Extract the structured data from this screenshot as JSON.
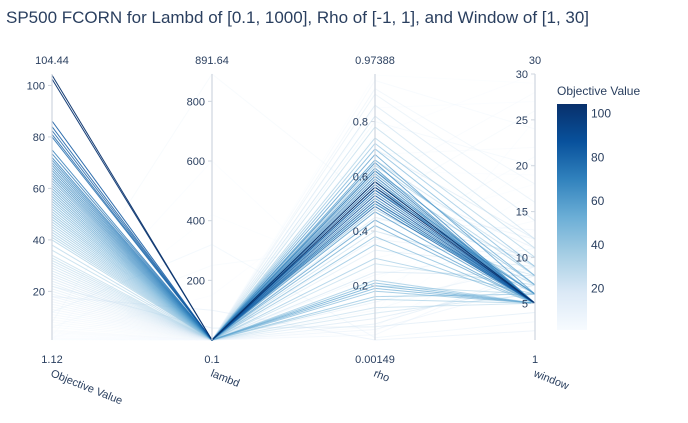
{
  "chart_data": {
    "type": "parallel_coordinates",
    "title": "SP500 FCORN for Lambd of [0.1, 1000], Rho of [-1, 1], and Window of [1, 30]",
    "colorscale": [
      "#f7fbff",
      "#dbe9f6",
      "#a6cee4",
      "#6baed6",
      "#3182bd",
      "#08519c",
      "#08306b"
    ],
    "dimensions": [
      {
        "name": "Objective Value",
        "min": 1.12,
        "max": 104.44,
        "min_label": "1.12",
        "max_label": "104.44",
        "ticks": [
          20,
          40,
          60,
          80,
          100
        ]
      },
      {
        "name": "lambd",
        "min": 0.1,
        "max": 891.64,
        "min_label": "0.1",
        "max_label": "891.64",
        "ticks": [
          200,
          400,
          600,
          800
        ]
      },
      {
        "name": "rho",
        "min": 0.00149,
        "max": 0.97388,
        "min_label": "0.00149",
        "max_label": "0.97388",
        "ticks": [
          0.2,
          0.4,
          0.6,
          0.8
        ]
      },
      {
        "name": "window",
        "min": 1,
        "max": 30,
        "min_label": "1",
        "max_label": "30",
        "ticks": [
          5,
          10,
          15,
          20,
          25,
          30
        ]
      }
    ],
    "colorbar": {
      "title": "Objective Value",
      "min": 1.12,
      "max": 104.44,
      "ticks": [
        20,
        40,
        60,
        80,
        100
      ]
    },
    "lines": [
      [
        104.0,
        0.1,
        0.58,
        5
      ],
      [
        102.5,
        0.1,
        0.56,
        5
      ],
      [
        86.2,
        0.1,
        0.53,
        5
      ],
      [
        84.0,
        0.1,
        0.55,
        5
      ],
      [
        82.5,
        0.1,
        0.51,
        5
      ],
      [
        81.0,
        0.1,
        0.49,
        5
      ],
      [
        80.0,
        0.1,
        0.57,
        5
      ],
      [
        75.0,
        0.1,
        0.62,
        5
      ],
      [
        73.5,
        0.1,
        0.58,
        5
      ],
      [
        72.0,
        0.1,
        0.6,
        5
      ],
      [
        71.0,
        0.1,
        0.54,
        5
      ],
      [
        70.0,
        0.1,
        0.65,
        5
      ],
      [
        69.0,
        0.1,
        0.52,
        5
      ],
      [
        68.0,
        0.1,
        0.59,
        5
      ],
      [
        67.0,
        0.1,
        0.5,
        5
      ],
      [
        66.0,
        0.1,
        0.63,
        5
      ],
      [
        65.0,
        0.1,
        0.55,
        6
      ],
      [
        64.0,
        0.1,
        0.47,
        5
      ],
      [
        63.0,
        0.1,
        0.61,
        5
      ],
      [
        62.0,
        0.1,
        0.68,
        6
      ],
      [
        61.0,
        0.1,
        0.44,
        5
      ],
      [
        60.0,
        0.1,
        0.56,
        6
      ],
      [
        59.0,
        0.1,
        0.5,
        5
      ],
      [
        58.0,
        0.1,
        0.66,
        7
      ],
      [
        57.0,
        0.1,
        0.42,
        5
      ],
      [
        56.0,
        0.1,
        0.2,
        5
      ],
      [
        55.0,
        0.1,
        0.19,
        5
      ],
      [
        54.0,
        0.1,
        0.58,
        6
      ],
      [
        53.0,
        0.1,
        0.21,
        5
      ],
      [
        52.0,
        0.1,
        0.7,
        8
      ],
      [
        51.0,
        0.1,
        0.38,
        5
      ],
      [
        50.0,
        0.1,
        0.18,
        5
      ],
      [
        49.0,
        0.1,
        0.62,
        7
      ],
      [
        48.0,
        0.1,
        0.35,
        5
      ],
      [
        47.0,
        0.1,
        0.16,
        6
      ],
      [
        46.0,
        0.1,
        0.72,
        9
      ],
      [
        45.0,
        0.1,
        0.48,
        6
      ],
      [
        44.0,
        0.1,
        0.22,
        5
      ],
      [
        43.0,
        0.1,
        0.3,
        6
      ],
      [
        42.0,
        0.1,
        0.64,
        8
      ],
      [
        41.0,
        0.1,
        0.15,
        5
      ],
      [
        40.0,
        0.1,
        0.74,
        10
      ],
      [
        38.0,
        0.1,
        0.5,
        7
      ],
      [
        36.0,
        0.1,
        0.2,
        6
      ],
      [
        34.0,
        0.1,
        0.78,
        11
      ],
      [
        33.0,
        0.1,
        0.28,
        7
      ],
      [
        32.0,
        0.1,
        0.12,
        5
      ],
      [
        31.0,
        0.1,
        0.66,
        9
      ],
      [
        30.0,
        0.1,
        0.4,
        8
      ],
      [
        29.0,
        0.1,
        0.82,
        12
      ],
      [
        28.0,
        0.1,
        0.1,
        6
      ],
      [
        27.0,
        0.1,
        0.55,
        9
      ],
      [
        26.0,
        0.1,
        0.25,
        8
      ],
      [
        25.0,
        0.1,
        0.86,
        14
      ],
      [
        24.0,
        0.1,
        0.08,
        7
      ],
      [
        23.0,
        0.1,
        0.45,
        10
      ],
      [
        22.0,
        0.1,
        0.7,
        12
      ],
      [
        21.0,
        0.1,
        0.33,
        9
      ],
      [
        20.0,
        0.1,
        0.06,
        8
      ],
      [
        19.0,
        0.1,
        0.9,
        16
      ],
      [
        18.0,
        0.1,
        0.6,
        11
      ],
      [
        17.0,
        0.1,
        0.14,
        9
      ],
      [
        16.0,
        0.1,
        0.37,
        10
      ],
      [
        15.0,
        0.1,
        0.04,
        7
      ],
      [
        14.0,
        0.1,
        0.92,
        18
      ],
      [
        13.0,
        0.1,
        0.52,
        12
      ],
      [
        12.0,
        0.1,
        0.24,
        11
      ],
      [
        11.0,
        0.1,
        0.02,
        9
      ],
      [
        10.0,
        0.1,
        0.8,
        20
      ],
      [
        9.0,
        0.1,
        0.44,
        13
      ],
      [
        8.0,
        0.1,
        0.11,
        10
      ],
      [
        7.0,
        0.1,
        0.95,
        24
      ],
      [
        6.0,
        0.1,
        0.3,
        14
      ],
      [
        5.0,
        0.1,
        0.68,
        22
      ],
      [
        4.5,
        0.1,
        0.05,
        12
      ],
      [
        4.0,
        0.1,
        0.58,
        28
      ],
      [
        3.5,
        0.1,
        0.18,
        15
      ],
      [
        3.0,
        0.1,
        0.85,
        27
      ],
      [
        2.5,
        0.1,
        0.4,
        18
      ],
      [
        2.0,
        0.1,
        0.03,
        13
      ],
      [
        1.8,
        0.1,
        0.75,
        30
      ],
      [
        1.5,
        0.1,
        0.26,
        20
      ],
      [
        1.3,
        0.1,
        0.97,
        29
      ],
      [
        1.2,
        0.1,
        0.09,
        16
      ],
      [
        12.0,
        320.0,
        0.01,
        3
      ],
      [
        8.0,
        891.64,
        0.5,
        26
      ],
      [
        6.0,
        250.0,
        0.35,
        21
      ],
      [
        3.0,
        600.0,
        0.1,
        25
      ],
      [
        2.0,
        150.0,
        0.62,
        19
      ],
      [
        1.5,
        420.0,
        0.22,
        17
      ],
      [
        18.0,
        100.0,
        0.0015,
        2
      ],
      [
        22.0,
        40.0,
        0.05,
        4
      ]
    ]
  }
}
